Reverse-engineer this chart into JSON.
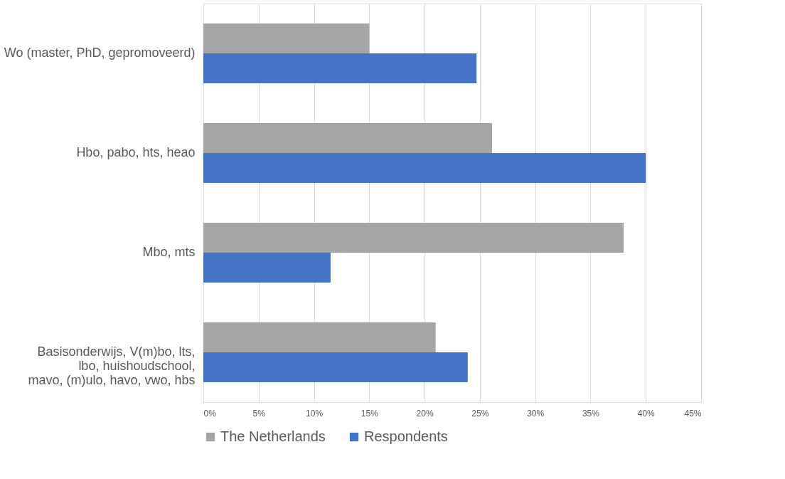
{
  "chart_data": {
    "type": "bar",
    "orientation": "horizontal",
    "categories": [
      "Wo (master, PhD, gepromoveerd)",
      "Hbo, pabo, hts, heao",
      "Mbo, mts",
      "Basisonderwijs, V(m)bo, lts,\nlbo, huishoudschool,\nmavo, (m)ulo, havo, vwo, hbs"
    ],
    "series": [
      {
        "name": "The Netherlands",
        "color": "#a5a5a5",
        "values": [
          15.0,
          26.1,
          38.0,
          21.0
        ]
      },
      {
        "name": "Respondents",
        "color": "#4472c4",
        "values": [
          24.7,
          40.0,
          11.5,
          23.9
        ]
      }
    ],
    "xlim": [
      0,
      45
    ],
    "xticks": [
      {
        "value": 0,
        "label": "0%"
      },
      {
        "value": 5,
        "label": "5%"
      },
      {
        "value": 10,
        "label": "10%"
      },
      {
        "value": 15,
        "label": "15%"
      },
      {
        "value": 20,
        "label": "20%"
      },
      {
        "value": 25,
        "label": "25%"
      },
      {
        "value": 30,
        "label": "30%"
      },
      {
        "value": 35,
        "label": "35%"
      },
      {
        "value": 40,
        "label": "40%"
      },
      {
        "value": 45,
        "label": "45%"
      }
    ],
    "grid": "x",
    "legend": "bottom"
  }
}
